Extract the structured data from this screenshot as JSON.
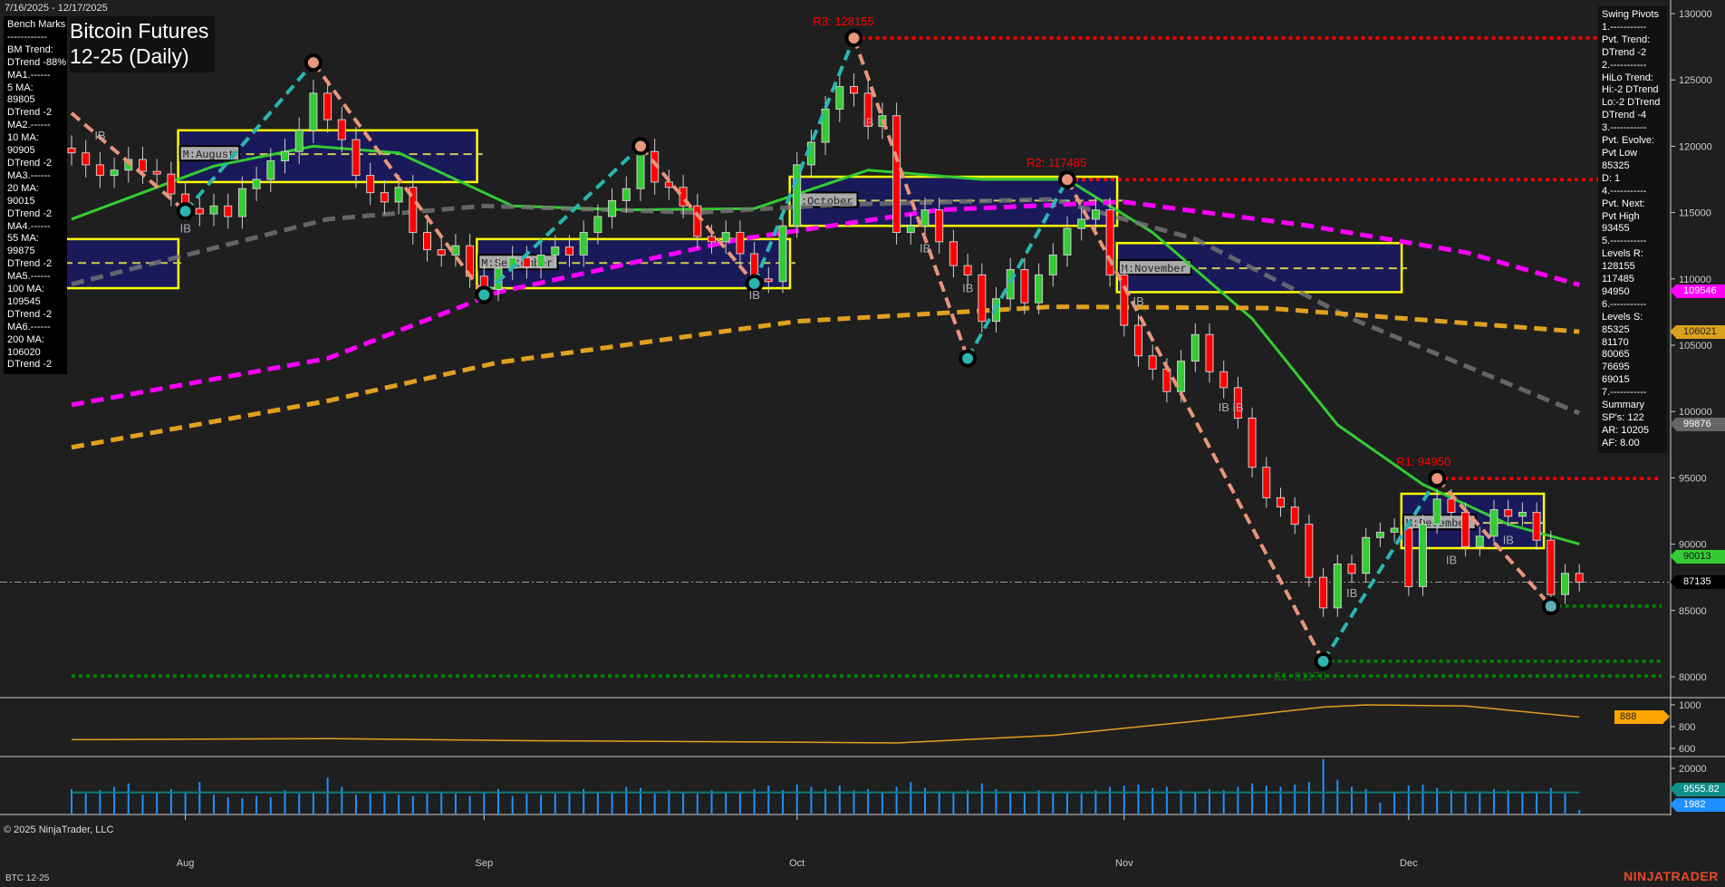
{
  "header": {
    "date_range": "7/16/2025 - 12/17/2025",
    "title_line1": "Bitcoin Futures",
    "title_line2": "12-25 (Daily)"
  },
  "bench_marks": [
    "Bench Marks",
    "------------",
    "BM Trend:",
    "DTrend -88%",
    "MA1.------",
    "5 MA:",
    "89805",
    "DTrend -2",
    "MA2.------",
    "10 MA:",
    "90905",
    "DTrend -2",
    "MA3.------",
    "20 MA:",
    "90015",
    "DTrend -2",
    "MA4.------",
    "55 MA:",
    "99875",
    "DTrend -2",
    "MA5.------",
    "100 MA:",
    "109545",
    "DTrend -2",
    "MA6.------",
    "200 MA:",
    "106020",
    "DTrend -2"
  ],
  "swing_pivots": [
    "Swing Pivots",
    "1.-----------",
    "Pvt. Trend:",
    "DTrend -2",
    "2.-----------",
    "HiLo Trend:",
    "Hi:-2 DTrend",
    "Lo:-2 DTrend",
    "DTrend -4",
    "3.-----------",
    "Pvt. Evolve:",
    "Pvt Low",
    "85325",
    "D: 1",
    "4.-----------",
    "Pvt. Next:",
    "Pvt High",
    "93455",
    "5.-----------",
    "Levels R:",
    "128155",
    "117485",
    "94950",
    "6.-----------",
    "Levels S:",
    "85325",
    "81170",
    "80065",
    "76695",
    "69015",
    "7.-----------",
    "Summary",
    "SP's: 122",
    "AR: 10205",
    "AF: 8.00"
  ],
  "footer": {
    "copyright": "© 2025 NinjaTrader, LLC",
    "symbol": "BTC 12-25",
    "logo": "NINJATRADER"
  },
  "colors": {
    "background": "#1f1f1f",
    "up": "#33cc33",
    "down": "#ff0000",
    "ma20": "#33cc33",
    "ma55": "#777777",
    "ma100": "#ff00ff",
    "ma200": "#e0a020",
    "swing_down": "#e8957a",
    "swing_up": "#2ab5b0",
    "month_box_fill": "#1a1a5a",
    "month_box_border": "#ffff00",
    "resistance": "#ff0000",
    "support": "#008800",
    "oscillator": "#e0a020",
    "volume": "#1e90ff"
  },
  "chart_data": {
    "type": "candlestick",
    "price_axis": {
      "ticks": [
        130000,
        125000,
        120000,
        115000,
        110000,
        105000,
        100000,
        95000,
        90000,
        85000,
        80000
      ],
      "range": [
        79000,
        130700
      ]
    },
    "x_ticks": [
      {
        "label": "Aug",
        "date": "2025-08-01"
      },
      {
        "label": "Sep",
        "date": "2025-09-01"
      },
      {
        "label": "Oct",
        "date": "2025-10-01"
      },
      {
        "label": "Nov",
        "date": "2025-11-03"
      },
      {
        "label": "Dec",
        "date": "2025-12-01"
      }
    ],
    "closes": [
      119500,
      118600,
      117800,
      118200,
      119000,
      118100,
      117900,
      116400,
      115300,
      114900,
      115500,
      114700,
      116800,
      117500,
      118900,
      119600,
      121200,
      124000,
      122000,
      120500,
      117800,
      116500,
      115800,
      116900,
      113500,
      112200,
      111800,
      112500,
      110200,
      109200,
      110800,
      111600,
      110900,
      111800,
      112400,
      111800,
      113500,
      114700,
      115900,
      116800,
      119600,
      117300,
      116900,
      115500,
      113200,
      112800,
      113500,
      111900,
      110000,
      109800,
      114000,
      118600,
      120300,
      122800,
      124500,
      124000,
      121500,
      122300,
      113500,
      114000,
      115200,
      112800,
      111000,
      110300,
      106800,
      108500,
      110700,
      108200,
      110300,
      111800,
      113800,
      114500,
      115200,
      110300,
      106500,
      104200,
      103200,
      101500,
      103800,
      105800,
      103000,
      101800,
      99500,
      95800,
      93500,
      92800,
      91500,
      87500,
      85200,
      88500,
      87800,
      90500,
      90900,
      91200,
      86800,
      91500,
      93400,
      92400,
      89800,
      90600,
      92600,
      92100,
      92400,
      90300,
      86200,
      87800,
      87135
    ],
    "moving_averages": [
      {
        "name": "20 MA",
        "color": "#33cc33",
        "last": 90013,
        "points": [
          [
            "2025-07-22",
            114500
          ],
          [
            "2025-08-05",
            118500
          ],
          [
            "2025-08-14",
            120000
          ],
          [
            "2025-08-22",
            119500
          ],
          [
            "2025-09-03",
            115500
          ],
          [
            "2025-09-15",
            115200
          ],
          [
            "2025-09-26",
            115300
          ],
          [
            "2025-10-08",
            118200
          ],
          [
            "2025-10-20",
            117500
          ],
          [
            "2025-10-28",
            117500
          ],
          [
            "2025-11-05",
            113500
          ],
          [
            "2025-11-14",
            107000
          ],
          [
            "2025-11-24",
            99000
          ],
          [
            "2025-12-02",
            94500
          ],
          [
            "2025-12-10",
            91500
          ],
          [
            "2025-12-17",
            90013
          ]
        ]
      },
      {
        "name": "55 MA",
        "color": "#777777",
        "last": 99876,
        "dashed": true,
        "points": [
          [
            "2025-07-22",
            109600
          ],
          [
            "2025-08-15",
            114500
          ],
          [
            "2025-09-01",
            115500
          ],
          [
            "2025-09-20",
            115000
          ],
          [
            "2025-10-06",
            115600
          ],
          [
            "2025-10-27",
            116000
          ],
          [
            "2025-11-10",
            113000
          ],
          [
            "2025-11-25",
            107000
          ],
          [
            "2025-12-17",
            99876
          ]
        ]
      },
      {
        "name": "100 MA",
        "color": "#ff00ff",
        "last": 109546,
        "dashed": true,
        "points": [
          [
            "2025-07-22",
            100500
          ],
          [
            "2025-08-15",
            104000
          ],
          [
            "2025-09-02",
            109000
          ],
          [
            "2025-09-25",
            113000
          ],
          [
            "2025-10-15",
            115200
          ],
          [
            "2025-11-01",
            115800
          ],
          [
            "2025-11-20",
            114000
          ],
          [
            "2025-12-05",
            112000
          ],
          [
            "2025-12-17",
            109546
          ]
        ]
      },
      {
        "name": "200 MA",
        "color": "#e0a020",
        "last": 106021,
        "dashed": true,
        "points": [
          [
            "2025-07-22",
            97300
          ],
          [
            "2025-08-15",
            100800
          ],
          [
            "2025-09-02",
            103700
          ],
          [
            "2025-10-01",
            106800
          ],
          [
            "2025-10-25",
            107900
          ],
          [
            "2025-11-15",
            107800
          ],
          [
            "2025-12-17",
            106021
          ]
        ]
      }
    ],
    "swing_pivots": [
      [
        "2025-07-22",
        122500
      ],
      [
        "2025-08-01",
        115100
      ],
      [
        "2025-08-14",
        126300
      ],
      [
        "2025-09-01",
        108800
      ],
      [
        "2025-09-16",
        120000
      ],
      [
        "2025-09-26",
        109650
      ],
      [
        "2025-10-07",
        128155
      ],
      [
        "2025-10-17",
        104000
      ],
      [
        "2025-10-28",
        117485
      ],
      [
        "2025-11-21",
        81170
      ],
      [
        "2025-12-03",
        94950
      ],
      [
        "2025-12-15",
        85325
      ]
    ],
    "resistance_levels": [
      {
        "label": "R3: 128155",
        "price": 128155,
        "from": "2025-10-07"
      },
      {
        "label": "R2: 117485",
        "price": 117485,
        "from": "2025-10-28"
      },
      {
        "label": "R1: 94950",
        "price": 94950,
        "from": "2025-12-03"
      }
    ],
    "support_levels": [
      {
        "label": "S1: 81170",
        "price": 81170,
        "from": "2025-11-21"
      },
      {
        "label": "",
        "price": 80065,
        "from": "2025-07-22"
      },
      {
        "label": "",
        "price": 85325,
        "from": "2025-12-15"
      }
    ],
    "month_boxes": [
      {
        "label": "",
        "from": "2025-07-22",
        "to": "2025-07-31",
        "high": 113000,
        "low": 109300,
        "mid": 111200
      },
      {
        "label": "M:August",
        "from": "2025-08-01",
        "to": "2025-08-29",
        "high": 121200,
        "low": 117300,
        "mid": 119400
      },
      {
        "label": "M:September",
        "from": "2025-09-01",
        "to": "2025-09-30",
        "high": 113000,
        "low": 109300,
        "mid": 111200
      },
      {
        "label": "M:October",
        "from": "2025-10-01",
        "to": "2025-10-31",
        "high": 117700,
        "low": 114000,
        "mid": 115900
      },
      {
        "label": "M:November",
        "from": "2025-11-03",
        "to": "2025-11-28",
        "high": 112700,
        "low": 109000,
        "mid": 110800
      },
      {
        "label": "M:December",
        "from": "2025-12-01",
        "to": "2025-12-12",
        "high": 93800,
        "low": 89700,
        "mid": 91600
      }
    ],
    "ib_labels": [
      [
        "2025-07-24",
        120500
      ],
      [
        "2025-08-01",
        113500
      ],
      [
        "2025-09-26",
        108500
      ],
      [
        "2025-10-08",
        121500
      ],
      [
        "2025-10-14",
        112000
      ],
      [
        "2025-10-17",
        109000
      ],
      [
        "2025-11-04",
        108000
      ],
      [
        "2025-11-12",
        100000
      ],
      [
        "2025-11-13",
        100000
      ],
      [
        "2025-11-25",
        86000
      ],
      [
        "2025-12-04",
        88500
      ],
      [
        "2025-12-10",
        90000
      ],
      [
        "2025-12-15",
        85000
      ]
    ],
    "last_price": 87135,
    "oscillator": {
      "ticks": [
        1000,
        800,
        600
      ],
      "last": 888,
      "points": [
        [
          "2025-07-22",
          680
        ],
        [
          "2025-08-15",
          690
        ],
        [
          "2025-09-05",
          670
        ],
        [
          "2025-09-25",
          660
        ],
        [
          "2025-10-10",
          650
        ],
        [
          "2025-10-25",
          720
        ],
        [
          "2025-11-10",
          850
        ],
        [
          "2025-11-21",
          980
        ],
        [
          "2025-11-26",
          1000
        ],
        [
          "2025-12-05",
          990
        ],
        [
          "2025-12-17",
          888
        ]
      ]
    },
    "volume": {
      "ticks": [
        20000
      ],
      "last": 1982,
      "avg_last": 9555.82,
      "values": [
        11000,
        9000,
        10500,
        12000,
        13500,
        8500,
        9500,
        11000,
        10000,
        14000,
        8500,
        7500,
        7000,
        8000,
        7500,
        10500,
        9000,
        10000,
        16000,
        12000,
        8500,
        9000,
        10000,
        8500,
        8000,
        9000,
        9500,
        9000,
        8000,
        9500,
        11000,
        8000,
        9000,
        8500,
        9000,
        10000,
        11000,
        9500,
        10000,
        12000,
        11500,
        9000,
        10500,
        9500,
        9000,
        10500,
        9500,
        10000,
        11000,
        12500,
        10500,
        13000,
        12000,
        11000,
        12500,
        10500,
        11000,
        9500,
        12000,
        14000,
        11500,
        10000,
        9500,
        10500,
        13500,
        11000,
        10000,
        9500,
        10500,
        9500,
        10000,
        9000,
        10500,
        12000,
        12500,
        13000,
        11500,
        12000,
        10500,
        9500,
        11000,
        10500,
        12000,
        13500,
        12500,
        12000,
        13000,
        14000,
        24000,
        15000,
        12000,
        11000,
        5000,
        9500,
        12500,
        13000,
        11500,
        10500,
        9500,
        10000,
        11000,
        10500,
        9500,
        10000,
        11500,
        9000,
        1982
      ]
    }
  }
}
